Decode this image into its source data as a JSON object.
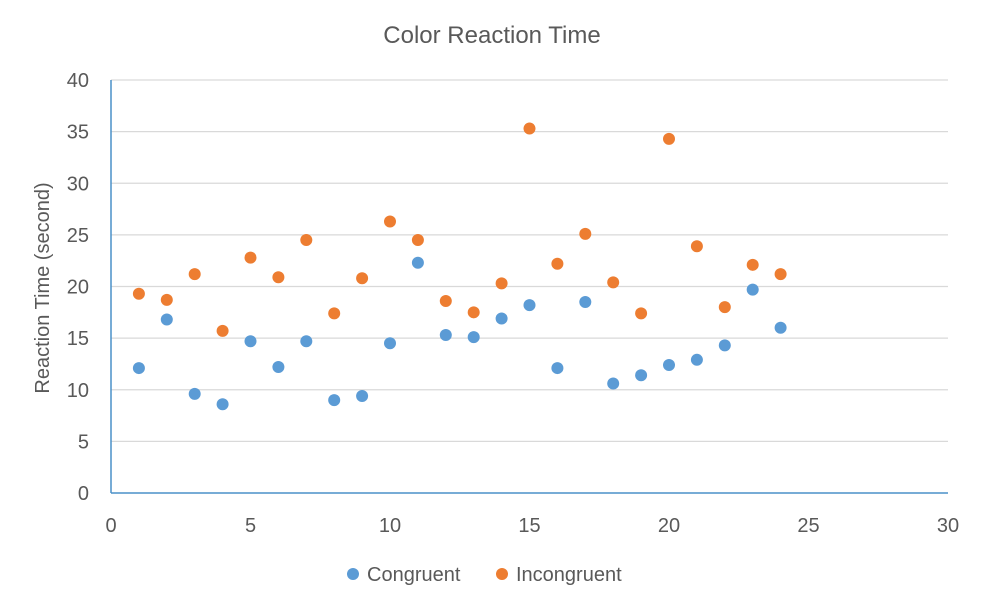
{
  "chart_data": {
    "type": "scatter",
    "title": "Color Reaction Time",
    "xlabel": "",
    "ylabel": "Reaction Time (second)",
    "xlim": [
      0,
      30
    ],
    "ylim": [
      0,
      40
    ],
    "xticks": [
      0,
      5,
      10,
      15,
      20,
      25,
      30
    ],
    "yticks": [
      0,
      5,
      10,
      15,
      20,
      25,
      30,
      35,
      40
    ],
    "grid": true,
    "legend_position": "bottom",
    "series": [
      {
        "name": "Congruent",
        "color": "#5B9BD5",
        "x": [
          1,
          2,
          3,
          4,
          5,
          6,
          7,
          8,
          9,
          10,
          11,
          12,
          13,
          14,
          15,
          16,
          17,
          18,
          19,
          20,
          21,
          22,
          23,
          24
        ],
        "y": [
          12.1,
          16.8,
          9.6,
          8.6,
          14.7,
          12.2,
          14.7,
          9.0,
          9.4,
          14.5,
          22.3,
          15.3,
          15.1,
          16.9,
          18.2,
          12.1,
          18.5,
          10.6,
          11.4,
          12.4,
          12.9,
          14.3,
          19.7,
          16.0
        ]
      },
      {
        "name": "Incongruent",
        "color": "#ED7D31",
        "x": [
          1,
          2,
          3,
          4,
          5,
          6,
          7,
          8,
          9,
          10,
          11,
          12,
          13,
          14,
          15,
          16,
          17,
          18,
          19,
          20,
          21,
          22,
          23,
          24
        ],
        "y": [
          19.3,
          18.7,
          21.2,
          15.7,
          22.8,
          20.9,
          24.5,
          17.4,
          20.8,
          26.3,
          24.5,
          18.6,
          17.5,
          20.3,
          35.3,
          22.2,
          25.1,
          20.4,
          17.4,
          34.3,
          23.9,
          18.0,
          22.1,
          21.2
        ]
      }
    ]
  }
}
